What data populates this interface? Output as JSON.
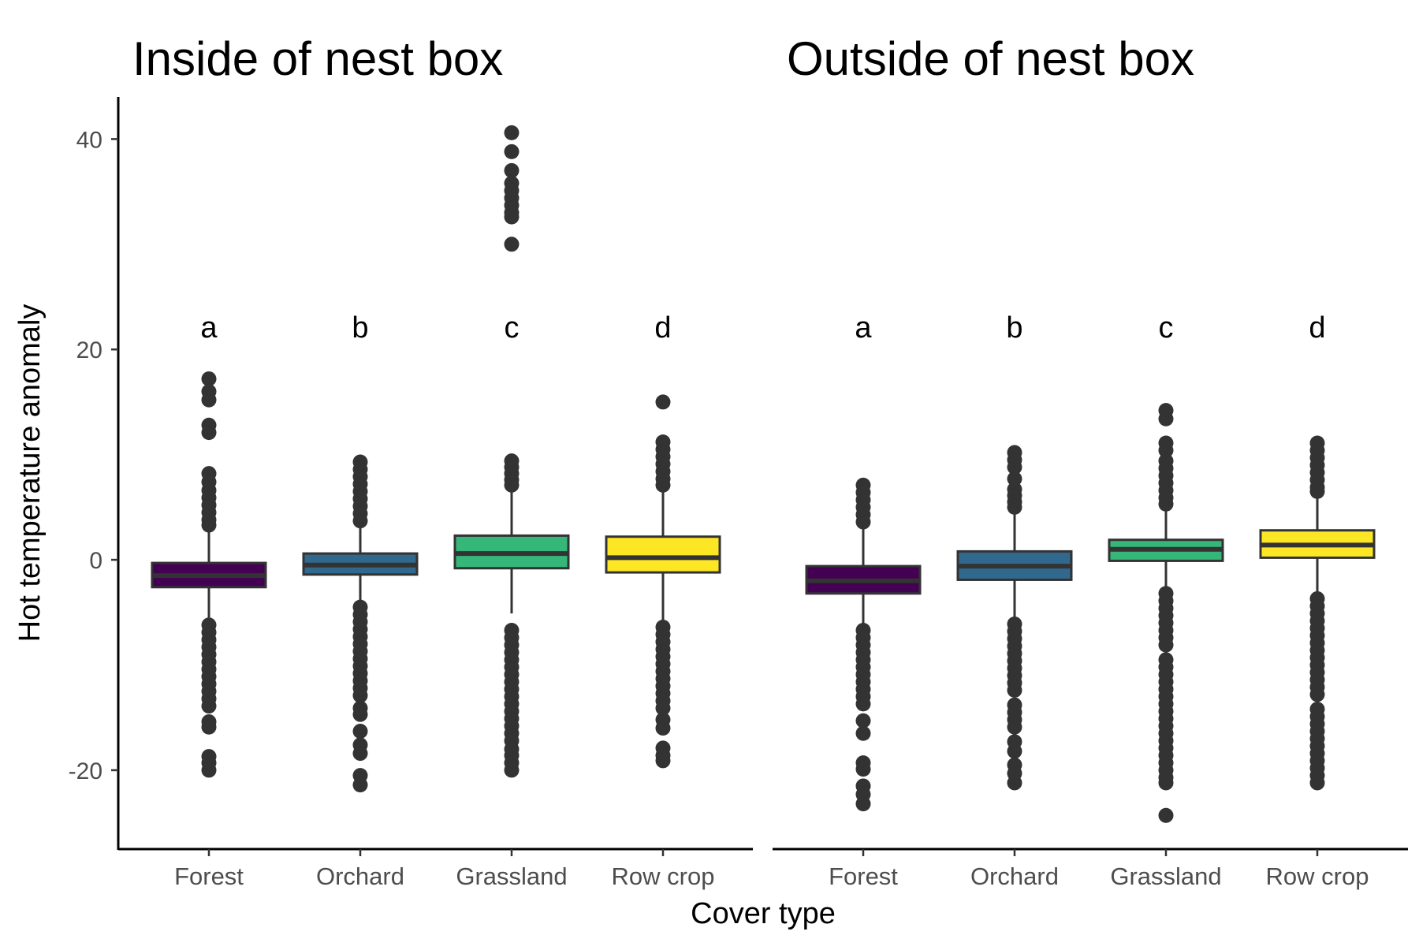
{
  "chart_data": {
    "type": "boxplot",
    "xlabel": "Cover type",
    "ylabel": "Hot temperature anomaly",
    "ylim": [
      -27.5,
      44
    ],
    "yticks": [
      -20,
      0,
      20,
      40
    ],
    "ytick_labels": [
      "-20",
      "0",
      "20",
      "40"
    ],
    "grid": false,
    "legend": "none",
    "categories": [
      "Forest",
      "Orchard",
      "Grassland",
      "Row crop"
    ],
    "colors": {
      "Forest": "#440154",
      "Orchard": "#31688E",
      "Grassland": "#35B779",
      "Row crop": "#FDE725"
    },
    "panels": [
      {
        "title": "Inside of nest box",
        "boxes": [
          {
            "category": "Forest",
            "q1": -2.6,
            "median": -1.5,
            "q3": -0.3,
            "whisker_low": -5.5,
            "whisker_high": 3.0,
            "letter": "a",
            "outliers": [
              17.2,
              16.0,
              15.2,
              12.8,
              12.1,
              8.2,
              7.4,
              6.6,
              5.9,
              5.2,
              4.5,
              3.8,
              3.3,
              -6.2,
              -6.9,
              -7.6,
              -8.3,
              -9.0,
              -9.7,
              -10.4,
              -11.1,
              -11.8,
              -12.5,
              -13.2,
              -13.9,
              -15.4,
              -15.9,
              -18.7,
              -19.3,
              -20.0
            ]
          },
          {
            "category": "Orchard",
            "q1": -1.4,
            "median": -0.5,
            "q3": 0.6,
            "whisker_low": -4.2,
            "whisker_high": 3.2,
            "letter": "b",
            "outliers": [
              9.3,
              8.6,
              7.9,
              7.2,
              6.5,
              5.8,
              5.1,
              4.4,
              3.7,
              -4.5,
              -5.2,
              -5.9,
              -6.6,
              -7.3,
              -8.0,
              -8.7,
              -9.4,
              -10.1,
              -10.8,
              -11.5,
              -12.2,
              -12.9,
              -14.1,
              -14.7,
              -16.3,
              -17.6,
              -18.4,
              -20.5,
              -21.4
            ]
          },
          {
            "category": "Grassland",
            "q1": -0.8,
            "median": 0.6,
            "q3": 2.3,
            "whisker_low": -5.1,
            "whisker_high": 6.6,
            "letter": "c",
            "outliers": [
              40.6,
              38.8,
              37.0,
              35.8,
              35.1,
              34.4,
              33.7,
              33.0,
              32.6,
              30.0,
              9.4,
              8.8,
              8.2,
              7.6,
              7.1,
              -6.7,
              -7.4,
              -8.1,
              -8.8,
              -9.5,
              -10.2,
              -10.9,
              -11.6,
              -12.3,
              -13.0,
              -13.7,
              -14.4,
              -15.1,
              -15.8,
              -16.5,
              -17.2,
              -18.0,
              -18.6,
              -19.3,
              -20.0
            ]
          },
          {
            "category": "Row crop",
            "q1": -1.2,
            "median": 0.2,
            "q3": 2.2,
            "whisker_low": -5.8,
            "whisker_high": 6.8,
            "letter": "d",
            "outliers": [
              15.0,
              11.2,
              10.5,
              9.8,
              9.1,
              8.4,
              7.7,
              7.1,
              -6.4,
              -7.1,
              -7.8,
              -8.5,
              -9.2,
              -9.9,
              -10.6,
              -11.3,
              -12.0,
              -12.7,
              -13.4,
              -14.1,
              -15.2,
              -16.0,
              -17.9,
              -18.6,
              -19.1
            ]
          }
        ]
      },
      {
        "title": "Outside of nest box",
        "boxes": [
          {
            "category": "Forest",
            "q1": -3.2,
            "median": -2.0,
            "q3": -0.6,
            "whisker_low": -6.4,
            "whisker_high": 3.0,
            "letter": "a",
            "outliers": [
              7.1,
              6.4,
              5.7,
              5.0,
              4.3,
              3.6,
              -6.7,
              -7.4,
              -8.1,
              -8.8,
              -9.5,
              -10.2,
              -10.9,
              -11.6,
              -12.3,
              -13.0,
              -13.7,
              -15.3,
              -16.5,
              -19.3,
              -19.9,
              -21.5,
              -22.3,
              -23.2
            ]
          },
          {
            "category": "Orchard",
            "q1": -1.9,
            "median": -0.6,
            "q3": 0.8,
            "whisker_low": -5.6,
            "whisker_high": 4.8,
            "letter": "b",
            "outliers": [
              10.2,
              9.5,
              8.8,
              7.7,
              6.7,
              6.1,
              5.5,
              5.0,
              -6.1,
              -6.8,
              -7.5,
              -8.2,
              -8.9,
              -9.6,
              -10.3,
              -11.0,
              -11.7,
              -12.4,
              -13.8,
              -14.5,
              -15.2,
              -15.9,
              -17.3,
              -18.2,
              -19.5,
              -20.3,
              -21.2
            ]
          },
          {
            "category": "Grassland",
            "q1": -0.1,
            "median": 1.0,
            "q3": 1.9,
            "whisker_low": -2.8,
            "whisker_high": 5.0,
            "letter": "c",
            "outliers": [
              14.2,
              13.4,
              11.1,
              10.4,
              9.4,
              8.7,
              8.0,
              7.3,
              6.6,
              5.9,
              5.3,
              -3.2,
              -3.9,
              -4.6,
              -5.3,
              -6.0,
              -6.7,
              -7.4,
              -8.1,
              -9.5,
              -10.2,
              -10.9,
              -11.6,
              -12.3,
              -13.0,
              -13.7,
              -14.4,
              -15.1,
              -15.8,
              -16.5,
              -17.2,
              -17.9,
              -18.6,
              -19.3,
              -20.0,
              -20.7,
              -21.2,
              -24.3
            ]
          },
          {
            "category": "Row crop",
            "q1": 0.2,
            "median": 1.4,
            "q3": 2.8,
            "whisker_low": -3.2,
            "whisker_high": 6.2,
            "letter": "d",
            "outliers": [
              11.1,
              10.4,
              9.7,
              9.0,
              8.3,
              7.6,
              6.9,
              6.5,
              -3.7,
              -4.4,
              -5.1,
              -5.8,
              -6.5,
              -7.2,
              -7.9,
              -8.6,
              -9.3,
              -10.0,
              -10.7,
              -11.4,
              -12.1,
              -12.8,
              -14.2,
              -14.9,
              -15.6,
              -16.3,
              -17.0,
              -17.7,
              -18.4,
              -19.1,
              -19.8,
              -20.5,
              -21.2
            ]
          }
        ]
      }
    ]
  }
}
